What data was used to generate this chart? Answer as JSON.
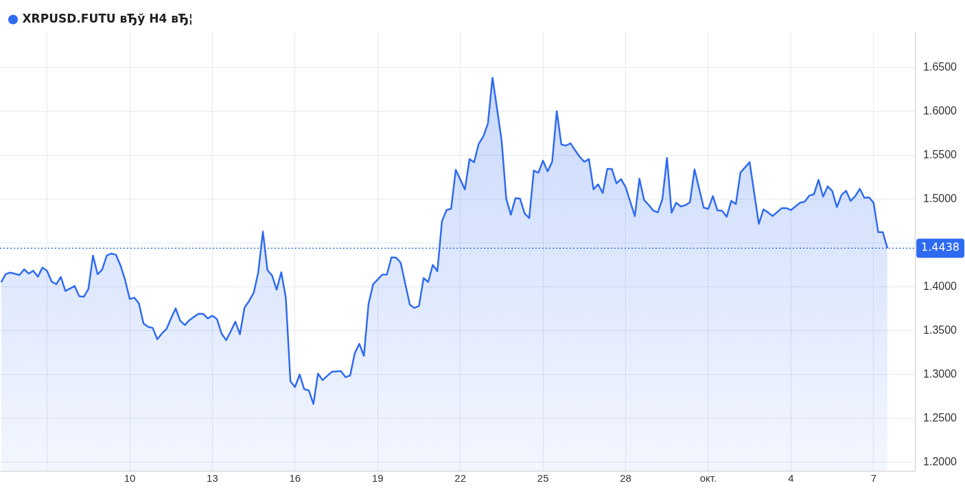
{
  "chart_data": {
    "type": "area",
    "x": [
      "--09-05T08:00",
      "--09-05T12:00",
      "--09-05T16:00",
      "--09-06T00:00",
      "--09-06T04:00",
      "--09-06T08:00",
      "--09-06T12:00",
      "--09-06T16:00",
      "--09-06T20:00",
      "--09-07T00:00",
      "--09-07T04:00",
      "--09-07T08:00",
      "--09-07T12:00",
      "--09-07T16:00",
      "--09-08T00:00",
      "--09-08T04:00",
      "--09-08T08:00",
      "--09-08T12:00",
      "--09-08T16:00",
      "--09-08T20:00",
      "--09-09T00:00",
      "--09-09T04:00",
      "--09-09T08:00",
      "--09-09T12:00",
      "--09-09T16:00",
      "--09-09T20:00",
      "--09-10T00:00",
      "--09-10T04:00",
      "--09-10T08:00",
      "--09-10T12:00",
      "--09-10T16:00",
      "--09-10T20:00",
      "--09-11T00:00",
      "--09-11T04:00",
      "--09-11T08:00",
      "--09-11T12:00",
      "--09-11T16:00",
      "--09-11T20:00",
      "--09-12T00:00",
      "--09-12T04:00",
      "--09-12T08:00",
      "--09-12T12:00",
      "--09-12T16:00",
      "--09-12T20:00",
      "--09-13T00:00",
      "--09-13T04:00",
      "--09-13T08:00",
      "--09-13T12:00",
      "--09-13T16:00",
      "--09-13T20:00",
      "--09-14T00:00",
      "--09-14T04:00",
      "--09-14T08:00",
      "--09-14T12:00",
      "--09-14T16:00",
      "--09-14T20:00",
      "--09-15T00:00",
      "--09-15T04:00",
      "--09-15T08:00",
      "--09-15T12:00",
      "--09-15T16:00",
      "--09-15T20:00",
      "--09-16T00:00",
      "--09-16T04:00",
      "--09-16T08:00",
      "--09-16T12:00",
      "--09-16T16:00",
      "--09-16T20:00",
      "--09-17T00:00",
      "--09-17T08:00",
      "--09-17T16:00",
      "--09-17T20:00",
      "--09-18T00:00",
      "--09-18T04:00",
      "--09-18T08:00",
      "--09-18T12:00",
      "--09-18T16:00",
      "--09-18T20:00",
      "--09-19T04:00",
      "--09-19T08:00",
      "--09-19T12:00",
      "--09-19T16:00",
      "--09-19T20:00",
      "--09-20T04:00",
      "--09-20T08:00",
      "--09-20T12:00",
      "--09-20T16:00",
      "--09-20T20:00",
      "--09-21T00:00",
      "--09-21T04:00",
      "--09-21T08:00",
      "--09-21T12:00",
      "--09-21T16:00",
      "--09-21T20:00",
      "--09-22T04:00",
      "--09-22T08:00",
      "--09-22T12:00",
      "--09-22T16:00",
      "--09-22T20:00",
      "--09-23T00:00",
      "--09-23T04:00",
      "--09-23T08:00",
      "--09-23T12:00",
      "--09-23T16:00",
      "--09-23T20:00",
      "--09-24T00:00",
      "--09-24T04:00",
      "--09-24T08:00",
      "--09-24T12:00",
      "--09-24T16:00",
      "--09-24T20:00",
      "--09-25T00:00",
      "--09-25T04:00",
      "--09-25T08:00",
      "--09-25T12:00",
      "--09-25T16:00",
      "--09-25T20:00",
      "--09-26T00:00",
      "--09-26T04:00",
      "--09-26T08:00",
      "--09-26T12:00",
      "--09-26T16:00",
      "--09-26T20:00",
      "--09-27T00:00",
      "--09-27T04:00",
      "--09-27T08:00",
      "--09-27T12:00",
      "--09-27T16:00",
      "--09-27T20:00",
      "--09-28T00:00",
      "--09-28T08:00",
      "--09-28T12:00",
      "--09-28T16:00",
      "--09-28T20:00",
      "--09-29T00:00",
      "--09-29T04:00",
      "--09-29T08:00",
      "--09-29T12:00",
      "--09-29T16:00",
      "--09-29T20:00",
      "--09-30T00:00",
      "--09-30T04:00",
      "--09-30T08:00",
      "--09-30T12:00",
      "--09-30T20:00",
      "--10-01T00:00",
      "--10-01T04:00",
      "--10-01T08:00",
      "--10-01T12:00",
      "--10-01T16:00",
      "--10-01T20:00",
      "--10-02T00:00",
      "--10-02T04:00",
      "--10-02T12:00",
      "--10-02T20:00",
      "--10-03T00:00",
      "--10-03T04:00",
      "--10-03T08:00",
      "--10-03T16:00",
      "--10-03T20:00",
      "--10-04T00:00",
      "--10-04T08:00",
      "--10-04T12:00",
      "--10-04T16:00",
      "--10-04T20:00",
      "--10-05T00:00",
      "--10-05T04:00",
      "--10-05T08:00",
      "--10-05T12:00",
      "--10-05T16:00",
      "--10-05T20:00",
      "--10-06T00:00",
      "--10-06T04:00",
      "--10-06T08:00",
      "--10-06T12:00",
      "--10-06T16:00",
      "--10-06T20:00",
      "--10-07T00:00",
      "--10-07T04:00",
      "--10-07T08:00",
      "--10-07T12:00"
    ],
    "series": [
      {
        "name": "XRPUSD.FUTU вЂў H4 вЂ¦",
        "color": "#2f6bf0",
        "values": [
          1.405,
          1.4143,
          1.416,
          1.4133,
          1.4197,
          1.4148,
          1.418,
          1.4113,
          1.4217,
          1.418,
          1.4057,
          1.4027,
          1.411,
          1.395,
          1.4006,
          1.389,
          1.3884,
          1.3973,
          1.4354,
          1.414,
          1.4194,
          1.4354,
          1.4377,
          1.4362,
          1.424,
          1.4074,
          1.3859,
          1.3874,
          1.3808,
          1.358,
          1.3541,
          1.353,
          1.34,
          1.3465,
          1.3516,
          1.3638,
          1.3752,
          1.361,
          1.3561,
          1.3617,
          1.3655,
          1.3691,
          1.3689,
          1.3637,
          1.3668,
          1.363,
          1.3465,
          1.3389,
          1.349,
          1.36,
          1.3457,
          1.376,
          1.3836,
          1.393,
          1.4164,
          1.4628,
          1.4187,
          1.4126,
          1.3965,
          1.4164,
          1.387,
          1.292,
          1.2855,
          1.2998,
          1.283,
          1.2817,
          1.2662,
          1.3008,
          1.2934,
          1.3028,
          1.3036,
          1.2967,
          1.2986,
          1.3238,
          1.3348,
          1.3211,
          1.3798,
          1.4026,
          1.4136,
          1.4136,
          1.4334,
          1.433,
          1.4273,
          1.3795,
          1.3756,
          1.378,
          1.4097,
          1.4052,
          1.4247,
          1.4176,
          1.4746,
          1.4873,
          1.4888,
          1.5331,
          1.5108,
          1.5454,
          1.5418,
          1.5628,
          1.5712,
          1.5856,
          1.6381,
          1.6027,
          1.566,
          1.5,
          1.4819,
          1.5008,
          1.5003,
          1.4834,
          1.4781,
          1.5323,
          1.5298,
          1.5436,
          1.5313,
          1.5423,
          1.6,
          1.562,
          1.5607,
          1.5633,
          1.5554,
          1.548,
          1.5423,
          1.5454,
          1.5108,
          1.5166,
          1.5066,
          1.5341,
          1.5341,
          1.5177,
          1.5225,
          1.5134,
          1.4804,
          1.523,
          1.4989,
          1.4933,
          1.4868,
          1.4846,
          1.4997,
          1.5467,
          1.4842,
          1.4956,
          1.4914,
          1.4928,
          1.4961,
          1.5336,
          1.49,
          1.4887,
          1.5032,
          1.4868,
          1.4865,
          1.4796,
          1.4977,
          1.4941,
          1.5299,
          1.5418,
          1.4714,
          1.488,
          1.4846,
          1.4804,
          1.4895,
          1.4895,
          1.4872,
          1.4956,
          1.4969,
          1.5038,
          1.5052,
          1.5217,
          1.5025,
          1.5143,
          1.5088,
          1.4906,
          1.5044,
          1.5093,
          1.4977,
          1.5032,
          1.5115,
          1.5011,
          1.5017,
          1.4956,
          1.4621,
          1.4621,
          1.4438
        ]
      }
    ],
    "xlim": [
      "--09-05T07:00",
      "--10-08T12:00"
    ],
    "xticks": [
      {
        "value": "--09-07",
        "label": null
      },
      {
        "value": "--09-10",
        "label": "10"
      },
      {
        "value": "--09-13",
        "label": "13"
      },
      {
        "value": "--09-16",
        "label": "16"
      },
      {
        "value": "--09-19",
        "label": "19"
      },
      {
        "value": "--09-22",
        "label": "22"
      },
      {
        "value": "--09-25",
        "label": "25"
      },
      {
        "value": "--09-28",
        "label": "28"
      },
      {
        "value": "--10-01",
        "label": "окт."
      },
      {
        "value": "--10-04",
        "label": "4"
      },
      {
        "value": "--10-07",
        "label": "7"
      }
    ],
    "ylim": [
      1.19,
      1.69
    ],
    "yticks": [
      {
        "value": 1.2,
        "label": "1.2000"
      },
      {
        "value": 1.25,
        "label": "1.2500"
      },
      {
        "value": 1.3,
        "label": "1.3000"
      },
      {
        "value": 1.35,
        "label": "1.3500"
      },
      {
        "value": 1.4,
        "label": "1.4000"
      },
      {
        "value": 1.45,
        "label": null
      },
      {
        "value": 1.5,
        "label": "1.5000"
      },
      {
        "value": 1.55,
        "label": "1.5500"
      },
      {
        "value": 1.6,
        "label": "1.6000"
      },
      {
        "value": 1.65,
        "label": "1.6500"
      }
    ],
    "ref_lines": [
      {
        "axis": "y",
        "value": 1.4438,
        "label": "1.4438",
        "color": "#2f6bf0",
        "line_style": "dotted"
      }
    ],
    "grid": true,
    "legend": "top left",
    "marker": "none",
    "line_style": "solid"
  }
}
